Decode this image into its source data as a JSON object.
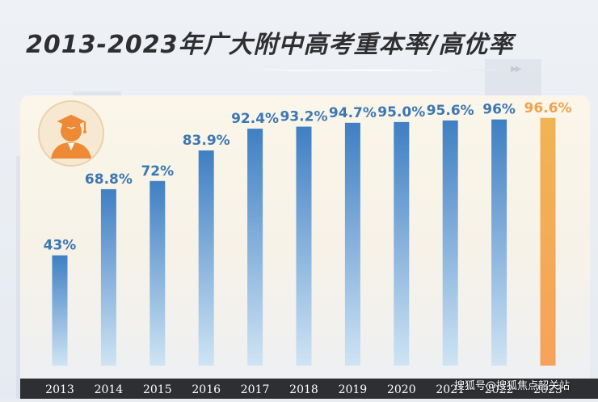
{
  "title": "2013-2023年广大附中高考重本率/高优率",
  "watermark": "搜狐号@搜狐焦点韶关站",
  "icons": {
    "avatar": "graduate-cap-icon",
    "arrows": "double-chevron-icon"
  },
  "colors": {
    "bar_blue_top": "#3f7fc3",
    "bar_blue_bottom": "#cfe4f4",
    "bar_highlight_top": "#f0b455",
    "bar_highlight_bottom": "#f7a25a",
    "label_blue": "#3d77b3",
    "label_orange": "#f0a24c",
    "axis_band": "#2d2f33",
    "avatar_orange": "#ee8a35"
  },
  "chart_data": {
    "type": "bar",
    "title": "2013-2023年广大附中高考重本率/高优率",
    "categories": [
      "2013",
      "2014",
      "2015",
      "2016",
      "2017",
      "2018",
      "2019",
      "2020",
      "2021",
      "2022",
      "2023"
    ],
    "values": [
      43,
      68.8,
      72,
      83.9,
      92.4,
      93.2,
      94.7,
      95.0,
      95.6,
      96,
      96.6
    ],
    "labels": [
      "43%",
      "68.8%",
      "72%",
      "83.9%",
      "92.4%",
      "93.2%",
      "94.7%",
      "95.0%",
      "95.6%",
      "96%",
      "96.6%"
    ],
    "highlight_index": 10,
    "ylim": [
      0,
      100
    ],
    "grid": false,
    "legend": "none"
  }
}
